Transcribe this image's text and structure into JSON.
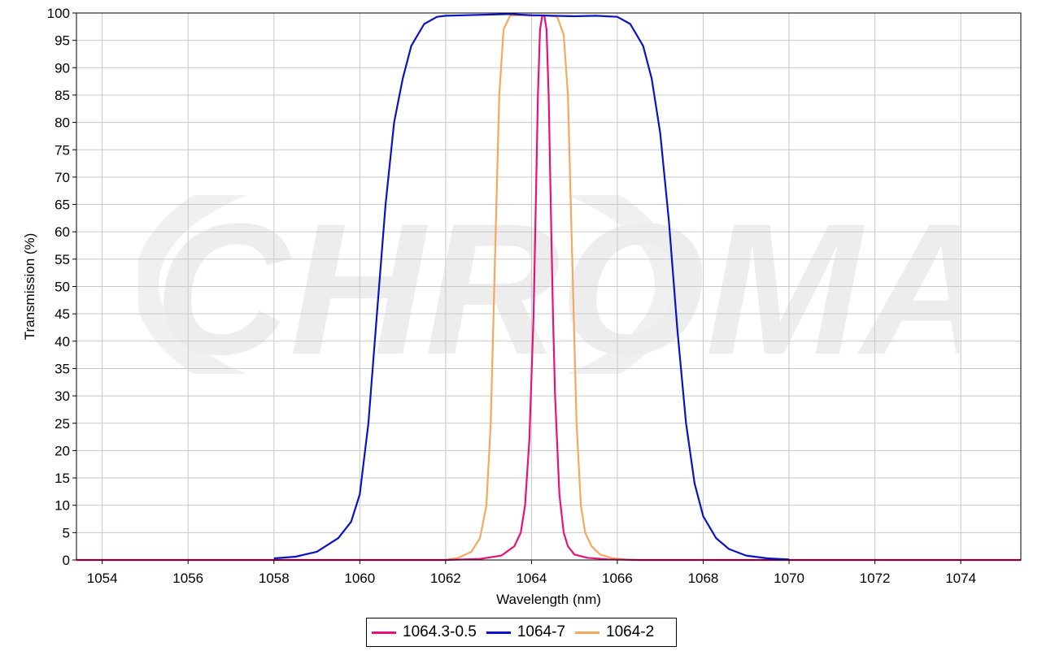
{
  "chart_data": {
    "type": "line",
    "xlabel": "Wavelength (nm)",
    "ylabel": "Transmission (%)",
    "xlim": [
      1053.4,
      1075.4
    ],
    "ylim": [
      0,
      100
    ],
    "x_ticks": [
      1054,
      1056,
      1058,
      1060,
      1062,
      1064,
      1066,
      1068,
      1070,
      1072,
      1074
    ],
    "y_ticks": [
      0,
      5,
      10,
      15,
      20,
      25,
      30,
      35,
      40,
      45,
      50,
      55,
      60,
      65,
      70,
      75,
      80,
      85,
      90,
      95,
      100
    ],
    "grid": true,
    "legend_position": "bottom-center",
    "watermark_text": "CHROMA",
    "series": [
      {
        "name": "1064.3-0.5",
        "color": "#e8117a",
        "x": [
          1053.4,
          1062.0,
          1062.8,
          1063.3,
          1063.6,
          1063.75,
          1063.85,
          1063.95,
          1064.05,
          1064.1,
          1064.15,
          1064.2,
          1064.25,
          1064.3,
          1064.35,
          1064.4,
          1064.45,
          1064.5,
          1064.55,
          1064.65,
          1064.75,
          1064.85,
          1065.0,
          1065.3,
          1065.8,
          1066.5,
          1075.4
        ],
        "y": [
          0,
          0,
          0.2,
          0.8,
          2.5,
          5,
          10,
          22,
          45,
          65,
          85,
          97,
          99.5,
          99.5,
          97,
          85,
          65,
          45,
          30,
          12,
          5,
          2.5,
          1,
          0.4,
          0.1,
          0,
          0
        ]
      },
      {
        "name": "1064-7",
        "color": "#0a12c8",
        "x": [
          1058.0,
          1058.5,
          1059.0,
          1059.5,
          1059.8,
          1060.0,
          1060.2,
          1060.4,
          1060.6,
          1060.8,
          1061.0,
          1061.2,
          1061.5,
          1061.8,
          1062.0,
          1062.5,
          1063.0,
          1063.5,
          1064.0,
          1064.5,
          1065.0,
          1065.5,
          1066.0,
          1066.3,
          1066.6,
          1066.8,
          1067.0,
          1067.2,
          1067.4,
          1067.6,
          1067.8,
          1068.0,
          1068.3,
          1068.6,
          1069.0,
          1069.5,
          1070.0
        ],
        "y": [
          0.3,
          0.6,
          1.5,
          4,
          7,
          12,
          25,
          45,
          65,
          80,
          88,
          94,
          98,
          99.3,
          99.5,
          99.6,
          99.7,
          99.8,
          99.6,
          99.5,
          99.4,
          99.5,
          99.3,
          98,
          94,
          88,
          78,
          62,
          42,
          25,
          14,
          8,
          4,
          2,
          0.8,
          0.3,
          0.1
        ]
      },
      {
        "name": "1064-2",
        "color": "#f4a860",
        "x": [
          1053.4,
          1062.0,
          1062.3,
          1062.6,
          1062.8,
          1062.95,
          1063.05,
          1063.15,
          1063.25,
          1063.35,
          1063.5,
          1063.7,
          1064.0,
          1064.3,
          1064.6,
          1064.75,
          1064.85,
          1064.95,
          1065.05,
          1065.15,
          1065.25,
          1065.4,
          1065.6,
          1065.9,
          1066.3,
          1075.4
        ],
        "y": [
          0,
          0,
          0.4,
          1.5,
          4,
          10,
          25,
          55,
          85,
          97,
          99.5,
          99.6,
          99.5,
          99.6,
          99.3,
          96,
          85,
          55,
          25,
          10,
          5,
          2.5,
          1,
          0.3,
          0,
          0
        ]
      }
    ]
  }
}
